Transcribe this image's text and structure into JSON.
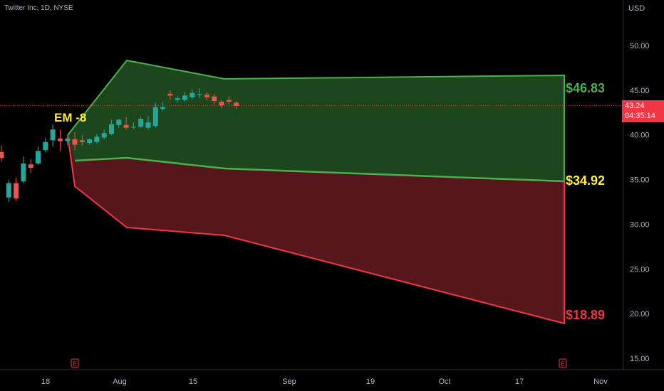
{
  "header": {
    "symbol": "Twitter Inc, 1D, NYSE",
    "currency": "USD"
  },
  "price_tag": {
    "price": "43.24",
    "countdown": "04:35:14",
    "color": "#f23645"
  },
  "colors": {
    "background": "#000000",
    "upper_fill": "#1e4a1e",
    "upper_edge": "#4caf50",
    "lower_fill": "#5a171d",
    "lower_edge": "#f23645",
    "bull_candle": "#26a69a",
    "bear_candle": "#ef5350",
    "em_label": "#ffeb3b",
    "top_label": "#4caf50",
    "mid_label": "#ffeb3b",
    "bottom_label": "#f23645",
    "axis_text": "#b2b5be",
    "earnings_marker": "#f23645"
  },
  "chart_data": {
    "type": "candlestick",
    "x_axis_labels": [
      "18",
      "Aug",
      "15",
      "Sep",
      "19",
      "Oct",
      "17",
      "Nov"
    ],
    "y_axis_labels": [
      "15.00",
      "20.00",
      "25.00",
      "30.00",
      "35.00",
      "40.00",
      "45.00",
      "50.00"
    ],
    "ylim": [
      13.5,
      54
    ],
    "annotations": {
      "em_label": "EM -8",
      "top_target": "$46.83",
      "mid_target": "$34.92",
      "bottom_target": "$18.89",
      "earnings_marker": "E"
    },
    "candles": [
      {
        "o": 38.1,
        "h": 38.8,
        "c": 37.4,
        "l": 37.0
      },
      {
        "o": 33.0,
        "h": 35.0,
        "c": 34.6,
        "l": 32.5
      },
      {
        "o": 34.6,
        "h": 35.2,
        "c": 32.9,
        "l": 32.6
      },
      {
        "o": 34.8,
        "h": 37.6,
        "c": 36.8,
        "l": 34.6
      },
      {
        "o": 36.7,
        "h": 37.3,
        "c": 36.3,
        "l": 35.7
      },
      {
        "o": 36.8,
        "h": 38.7,
        "c": 38.2,
        "l": 36.6
      },
      {
        "o": 38.3,
        "h": 39.7,
        "c": 39.2,
        "l": 38.0
      },
      {
        "o": 39.4,
        "h": 41.2,
        "c": 40.6,
        "l": 38.7
      },
      {
        "o": 39.6,
        "h": 40.6,
        "c": 39.3,
        "l": 38.2
      },
      {
        "o": 39.3,
        "h": 39.8,
        "c": 39.6,
        "l": 38.8
      },
      {
        "o": 39.5,
        "h": 40.3,
        "c": 38.9,
        "l": 38.3
      },
      {
        "o": 39.4,
        "h": 40.0,
        "c": 39.2,
        "l": 38.8
      },
      {
        "o": 39.1,
        "h": 39.6,
        "c": 39.5,
        "l": 38.9
      },
      {
        "o": 39.2,
        "h": 40.1,
        "c": 39.8,
        "l": 39.0
      },
      {
        "o": 39.7,
        "h": 40.6,
        "c": 40.2,
        "l": 39.5
      },
      {
        "o": 40.1,
        "h": 41.7,
        "c": 41.2,
        "l": 40.0
      },
      {
        "o": 41.1,
        "h": 41.8,
        "c": 41.7,
        "l": 40.8
      },
      {
        "o": 41.1,
        "h": 42.0,
        "c": 40.8,
        "l": 40.6
      },
      {
        "o": 40.9,
        "h": 41.4,
        "c": 40.9,
        "l": 40.6
      },
      {
        "o": 40.9,
        "h": 42.0,
        "c": 41.8,
        "l": 40.8
      },
      {
        "o": 40.8,
        "h": 42.1,
        "c": 41.4,
        "l": 40.6
      },
      {
        "o": 41.0,
        "h": 43.6,
        "c": 43.1,
        "l": 40.8
      },
      {
        "o": 42.9,
        "h": 43.7,
        "c": 43.1,
        "l": 42.7
      },
      {
        "o": 44.6,
        "h": 45.0,
        "c": 44.4,
        "l": 43.9
      },
      {
        "o": 43.9,
        "h": 44.3,
        "c": 44.1,
        "l": 43.6
      },
      {
        "o": 43.9,
        "h": 44.8,
        "c": 44.4,
        "l": 43.7
      },
      {
        "o": 44.2,
        "h": 45.1,
        "c": 44.7,
        "l": 44.0
      },
      {
        "o": 44.5,
        "h": 45.2,
        "c": 44.6,
        "l": 44.1
      },
      {
        "o": 44.5,
        "h": 44.8,
        "c": 44.2,
        "l": 43.9
      },
      {
        "o": 44.3,
        "h": 44.6,
        "c": 43.8,
        "l": 43.4
      },
      {
        "o": 43.7,
        "h": 43.9,
        "c": 43.3,
        "l": 43.0
      },
      {
        "o": 43.9,
        "h": 44.3,
        "c": 43.7,
        "l": 43.4
      },
      {
        "o": 43.6,
        "h": 43.8,
        "c": 43.24,
        "l": 42.9
      }
    ]
  }
}
